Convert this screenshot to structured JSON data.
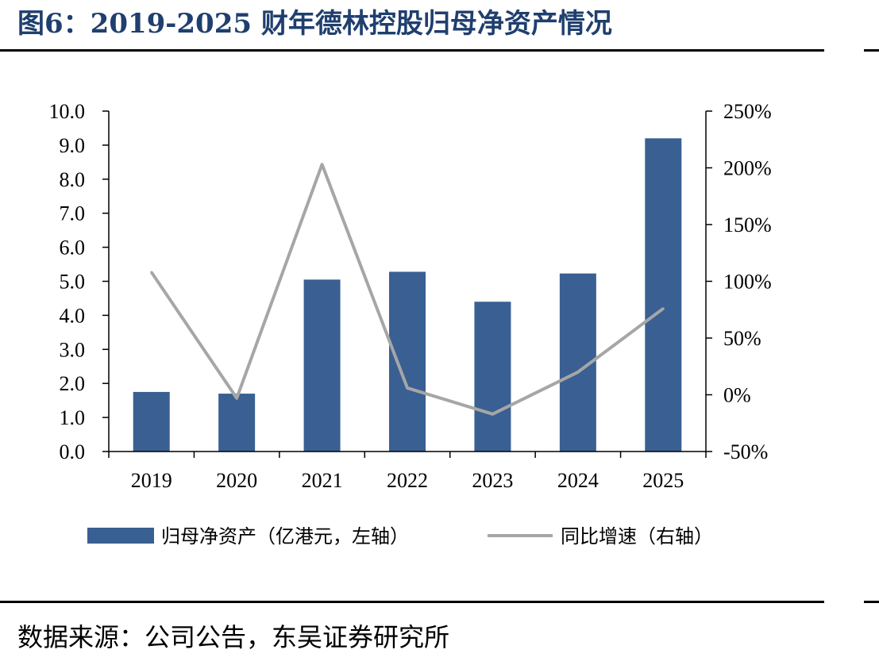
{
  "figure": {
    "title": "图6：2019-2025 财年德林控股归母净资产情况",
    "source": "数据来源：公司公告，东吴证券研究所"
  },
  "colors": {
    "bar": "#3A5F92",
    "line": "#A6A6A6",
    "title": "#1F3F6E",
    "axis": "#000000"
  },
  "chart_data": {
    "type": "bar",
    "categories": [
      "2019",
      "2020",
      "2021",
      "2022",
      "2023",
      "2024",
      "2025"
    ],
    "series": [
      {
        "name": "归母净资产（亿港元，左轴）",
        "type": "bar",
        "axis": "left",
        "values": [
          1.75,
          1.7,
          5.05,
          5.28,
          4.4,
          5.23,
          9.2
        ]
      },
      {
        "name": "同比增速（右轴）",
        "type": "line",
        "axis": "right",
        "values": [
          108,
          -3,
          203,
          6,
          -17,
          20,
          76
        ]
      }
    ],
    "left_axis": {
      "min": 0,
      "max": 10,
      "step": 1,
      "tick_labels": [
        "0.0",
        "1.0",
        "2.0",
        "3.0",
        "4.0",
        "5.0",
        "6.0",
        "7.0",
        "8.0",
        "9.0",
        "10.0"
      ]
    },
    "right_axis": {
      "min": -50,
      "max": 250,
      "step": 50,
      "tick_labels": [
        "-50%",
        "0%",
        "50%",
        "100%",
        "150%",
        "200%",
        "250%"
      ]
    },
    "legend": {
      "position": "bottom"
    },
    "grid": false
  }
}
